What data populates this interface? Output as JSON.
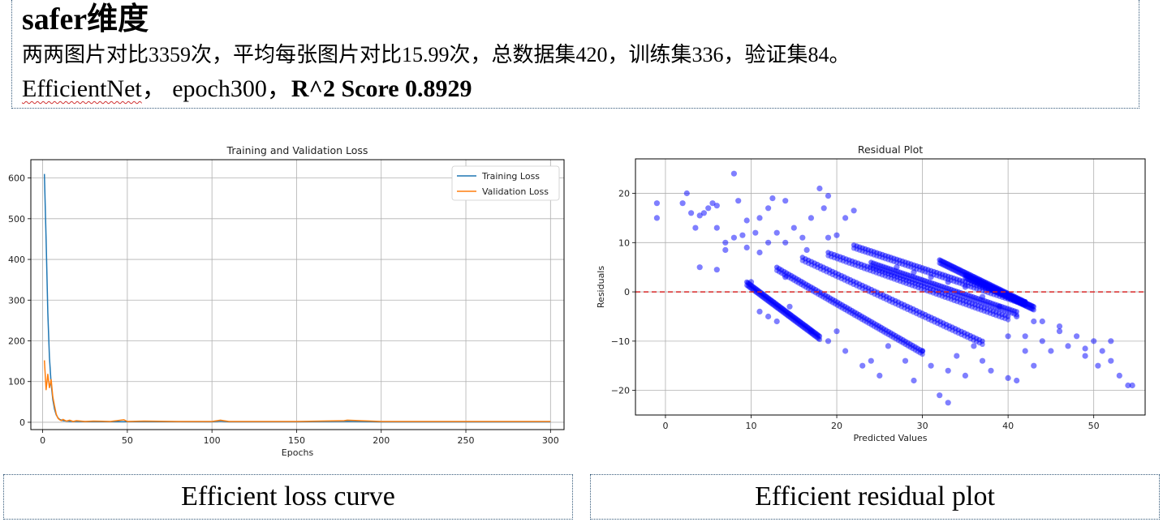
{
  "header": {
    "title": "safer维度",
    "description": "两两图片对比3359次，平均每张图片对比15.99次，总数据集420，训练集336，验证集84。",
    "model_name": "EfficientNet",
    "model_rest": "，  epoch300，",
    "score_text": "R^2 Score 0.8929"
  },
  "captions": {
    "left": "Efficient loss curve",
    "right": "Efficient residual plot"
  },
  "colors": {
    "training": "#1f77b4",
    "validation": "#ff7f0e",
    "points": "#0000ff",
    "zero_line": "#d62728"
  },
  "chart_data": [
    {
      "type": "line",
      "title": "Training and Validation Loss",
      "xlabel": "Epochs",
      "ylabel": "",
      "xlim": [
        -7,
        308
      ],
      "ylim": [
        -18,
        645
      ],
      "xticks": [
        0,
        50,
        100,
        150,
        200,
        250,
        300
      ],
      "yticks": [
        0,
        100,
        200,
        300,
        400,
        500,
        600
      ],
      "grid": true,
      "legend": "top-right",
      "series": [
        {
          "name": "Training Loss",
          "x": [
            1,
            2,
            3,
            4,
            5,
            6,
            7,
            8,
            9,
            10,
            12,
            14,
            16,
            18,
            20,
            25,
            30,
            40,
            50,
            60,
            80,
            100,
            105,
            110,
            150,
            180,
            200,
            250,
            300
          ],
          "y": [
            610,
            450,
            270,
            160,
            95,
            55,
            32,
            18,
            11,
            7,
            4,
            3,
            2.5,
            2,
            2,
            1.8,
            1.6,
            1.5,
            1.5,
            1.4,
            1.3,
            1.2,
            3,
            1.2,
            1.1,
            2.5,
            1.0,
            1.0,
            1.0
          ]
        },
        {
          "name": "Validation Loss",
          "x": [
            1,
            2,
            3,
            4,
            5,
            6,
            7,
            8,
            9,
            10,
            11,
            12,
            14,
            16,
            18,
            20,
            25,
            30,
            40,
            48,
            50,
            60,
            80,
            100,
            105,
            110,
            150,
            178,
            180,
            200,
            250,
            300
          ],
          "y": [
            152,
            80,
            118,
            85,
            105,
            62,
            40,
            20,
            10,
            6,
            4,
            7,
            3,
            5,
            2,
            4,
            2,
            3,
            2,
            6,
            2,
            3,
            2,
            2,
            5,
            2,
            2,
            4,
            5,
            2,
            2,
            2
          ]
        }
      ]
    },
    {
      "type": "scatter",
      "title": "Residual Plot",
      "xlabel": "Predicted Values",
      "ylabel": "Residuals",
      "xlim": [
        -3.5,
        56
      ],
      "ylim": [
        -25,
        27
      ],
      "xticks": [
        0,
        10,
        20,
        30,
        40,
        50
      ],
      "yticks": [
        -20,
        -10,
        0,
        10,
        20
      ],
      "grid": true,
      "reference_line": {
        "y": 0,
        "style": "dashed"
      },
      "points": [
        [
          -1,
          18
        ],
        [
          -1,
          15
        ],
        [
          2,
          18
        ],
        [
          2.5,
          20
        ],
        [
          3,
          16
        ],
        [
          3.5,
          13
        ],
        [
          4,
          15.5
        ],
        [
          4.5,
          16
        ],
        [
          5,
          17
        ],
        [
          5.5,
          18
        ],
        [
          6,
          17.5
        ],
        [
          6,
          13
        ],
        [
          7,
          10
        ],
        [
          7,
          8.5
        ],
        [
          8,
          24
        ],
        [
          8,
          11
        ],
        [
          8.5,
          18.5
        ],
        [
          9,
          11.5
        ],
        [
          9.5,
          14.5
        ],
        [
          9.5,
          9
        ],
        [
          10.5,
          12
        ],
        [
          11,
          15
        ],
        [
          11,
          8
        ],
        [
          12,
          10
        ],
        [
          12,
          17
        ],
        [
          12.5,
          19
        ],
        [
          13,
          12
        ],
        [
          14,
          18.5
        ],
        [
          14,
          10
        ],
        [
          15,
          13
        ],
        [
          16,
          11
        ],
        [
          16.5,
          8.5
        ],
        [
          17,
          15
        ],
        [
          18,
          21
        ],
        [
          18.5,
          17
        ],
        [
          19,
          19.5
        ],
        [
          19,
          11
        ],
        [
          20,
          11.5
        ],
        [
          21,
          15
        ],
        [
          22,
          16.5
        ],
        [
          4,
          5
        ],
        [
          6,
          4.5
        ],
        [
          10,
          2
        ],
        [
          11,
          -4
        ],
        [
          12,
          -5
        ],
        [
          13,
          -6
        ],
        [
          14,
          3
        ],
        [
          14.5,
          -3
        ],
        [
          17,
          -8
        ],
        [
          19,
          -10
        ],
        [
          20,
          -8
        ],
        [
          21,
          -12
        ],
        [
          23,
          -15
        ],
        [
          24,
          -14
        ],
        [
          25,
          -17
        ],
        [
          26,
          -11
        ],
        [
          28,
          -14
        ],
        [
          29,
          -18
        ],
        [
          30,
          -12
        ],
        [
          31,
          -15
        ],
        [
          32,
          -21
        ],
        [
          33,
          -22.5
        ],
        [
          33,
          -16
        ],
        [
          34,
          -13
        ],
        [
          35,
          -17
        ],
        [
          36,
          -11
        ],
        [
          37,
          -14
        ],
        [
          38,
          -16
        ],
        [
          40,
          -17.5
        ],
        [
          41,
          -18
        ],
        [
          42,
          -12
        ],
        [
          43,
          -15
        ],
        [
          44,
          -10
        ],
        [
          45,
          -12
        ],
        [
          46,
          -8
        ],
        [
          47,
          -11
        ],
        [
          48,
          -9
        ],
        [
          49,
          -13
        ],
        [
          50,
          -10
        ],
        [
          50.5,
          -15
        ],
        [
          51,
          -12
        ],
        [
          52,
          -14
        ],
        [
          53,
          -17
        ],
        [
          54,
          -19
        ],
        [
          54.5,
          -19
        ],
        [
          52,
          -10
        ],
        [
          49,
          -11.5
        ],
        [
          46,
          -7
        ],
        [
          44,
          -6
        ],
        [
          42,
          -9
        ],
        [
          27,
          5
        ],
        [
          29,
          4
        ],
        [
          31,
          3
        ],
        [
          33,
          2
        ],
        [
          35,
          1
        ],
        [
          37,
          -1
        ],
        [
          39,
          -3
        ],
        [
          41,
          -5
        ],
        [
          43,
          -6
        ],
        [
          40,
          -9
        ]
      ],
      "bands": [
        {
          "x_start": 9.5,
          "x_end": 18,
          "y_start": 2,
          "y_end": -9
        },
        {
          "x_start": 13,
          "x_end": 30,
          "y_start": 5,
          "y_end": -12
        },
        {
          "x_start": 16,
          "x_end": 37,
          "y_start": 7,
          "y_end": -10
        },
        {
          "x_start": 19,
          "x_end": 40,
          "y_start": 8,
          "y_end": -5
        },
        {
          "x_start": 22,
          "x_end": 42,
          "y_start": 9.5,
          "y_end": -2
        },
        {
          "x_start": 24,
          "x_end": 41,
          "y_start": 6,
          "y_end": -4
        },
        {
          "x_start": 32,
          "x_end": 42,
          "y_start": 6.5,
          "y_end": -2
        },
        {
          "x_start": 35,
          "x_end": 43,
          "y_start": 3.5,
          "y_end": -3
        }
      ]
    }
  ]
}
